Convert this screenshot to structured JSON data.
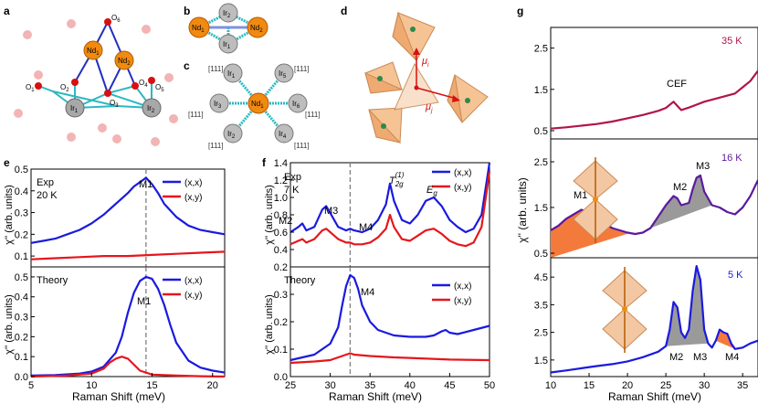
{
  "panel_labels": [
    "a",
    "b",
    "c",
    "d",
    "e",
    "f",
    "g"
  ],
  "colors": {
    "blue": "#1a1ae0",
    "red": "#e6161c",
    "crimson": "#b0154a",
    "purple": "#5b1a9e",
    "dashed": "#808080",
    "orange_fill": "#f47a3c",
    "grey_fill": "#9a9a9a",
    "nd": "#f08a10",
    "ir": "#a8a8a8",
    "oxygen": "#d81010",
    "bond": "#2cb8c0"
  },
  "structure": {
    "a_labels": {
      "o6": "O",
      "o6_sub": "6",
      "nd1": "Nd",
      "nd1_sub": "1",
      "nd2": "Nd",
      "nd2_sub": "2",
      "o1": "O",
      "o1_sub": "1",
      "o2": "O",
      "o2_sub": "2",
      "o3": "O",
      "o3_sub": "3",
      "o4": "O",
      "o4_sub": "4",
      "o5": "O",
      "o5_sub": "5",
      "ir1": "Ir",
      "ir1_sub": "1",
      "ir2": "Ir",
      "ir2_sub": "2"
    },
    "b_labels": {
      "nd1": "Nd",
      "nd1_sub": "1",
      "nd2": "Nd",
      "nd2_sub": "2",
      "ir2": "Ir",
      "ir2_sub": "2",
      "ir1": "Ir",
      "ir1_sub": "1"
    },
    "c_labels": {
      "nd1": "Nd",
      "nd1_sub": "1",
      "ir1a": "Ir",
      "ir1a_sub": "1",
      "ir5": "Ir",
      "ir5_sub": "5",
      "ir3": "Ir",
      "ir3_sub": "3",
      "ir6": "Ir",
      "ir6_sub": "6",
      "ir2": "Ir",
      "ir2_sub": "2",
      "ir4": "Ir",
      "ir4_sub": "4",
      "dir_tl": "[111]",
      "dir_tr": "[111]",
      "dir_ml": "[111]",
      "dir_mr": "[111]",
      "dir_bl": "[111]",
      "dir_br": "[111]"
    },
    "d_labels": {
      "mu_i": "μ",
      "mu_i_sub": "i",
      "mu_j": "μ",
      "mu_j_sub": "j"
    }
  },
  "chart_data": [
    {
      "id": "e_exp",
      "type": "line",
      "panel": "e",
      "title": "Exp",
      "condition": "20 K",
      "annotation": "M1",
      "xlabel": "Raman Shift (meV)",
      "ylabel": "χ'' (arb. units)",
      "xlim": [
        5,
        21
      ],
      "ylim": [
        0.05,
        0.5
      ],
      "yticks": [
        "0.1",
        "0.2",
        "0.3",
        "0.4",
        "0.5"
      ],
      "ytick_values": [
        0.1,
        0.2,
        0.3,
        0.4,
        0.5
      ],
      "dashed_x": 14.5,
      "series": [
        {
          "name": "(x,x)",
          "color": "#1a1ae0",
          "x": [
            5,
            6,
            7,
            8,
            9,
            10,
            11,
            12,
            13,
            13.5,
            14,
            14.5,
            15,
            15.5,
            16,
            17,
            18,
            19,
            20,
            21
          ],
          "y": [
            0.16,
            0.17,
            0.18,
            0.2,
            0.22,
            0.25,
            0.29,
            0.34,
            0.39,
            0.42,
            0.44,
            0.46,
            0.43,
            0.39,
            0.34,
            0.28,
            0.24,
            0.22,
            0.21,
            0.2
          ]
        },
        {
          "name": "(x,y)",
          "color": "#e6161c",
          "x": [
            5,
            7,
            9,
            11,
            13,
            15,
            17,
            19,
            21
          ],
          "y": [
            0.085,
            0.09,
            0.095,
            0.1,
            0.1,
            0.105,
            0.11,
            0.115,
            0.12
          ]
        }
      ]
    },
    {
      "id": "e_theory",
      "type": "line",
      "panel": "e",
      "title": "Theory",
      "annotation": "M1",
      "xlabel": "Raman Shift (meV)",
      "ylabel": "χ'' (arb. units)",
      "xlim": [
        5,
        21
      ],
      "ylim": [
        0,
        0.55
      ],
      "xticks": [
        "5",
        "10",
        "15",
        "20"
      ],
      "xtick_values": [
        5,
        10,
        15,
        20
      ],
      "yticks": [
        "0.0",
        "0.1",
        "0.2",
        "0.3",
        "0.4",
        "0.5"
      ],
      "ytick_values": [
        0,
        0.1,
        0.2,
        0.3,
        0.4,
        0.5
      ],
      "dashed_x": 14.5,
      "series": [
        {
          "name": "(x,x)",
          "color": "#1a1ae0",
          "x": [
            5,
            7,
            9,
            10,
            11,
            12,
            12.5,
            13,
            13.5,
            14,
            14.5,
            15,
            15.5,
            16,
            16.5,
            17,
            18,
            19,
            20,
            21
          ],
          "y": [
            0.005,
            0.008,
            0.015,
            0.025,
            0.05,
            0.12,
            0.2,
            0.32,
            0.42,
            0.48,
            0.5,
            0.49,
            0.44,
            0.36,
            0.26,
            0.17,
            0.08,
            0.045,
            0.03,
            0.02
          ]
        },
        {
          "name": "(x,y)",
          "color": "#e6161c",
          "x": [
            5,
            8,
            10,
            11,
            11.5,
            12,
            12.5,
            13,
            13.5,
            14,
            15,
            17,
            19,
            21
          ],
          "y": [
            0.0,
            0.005,
            0.015,
            0.04,
            0.07,
            0.09,
            0.1,
            0.09,
            0.06,
            0.03,
            0.01,
            0.005,
            0.002,
            0.0
          ]
        }
      ]
    },
    {
      "id": "f_exp",
      "type": "line",
      "panel": "f",
      "title": "Exp",
      "condition": "7 K",
      "annotations": [
        "M2",
        "M3",
        "M4",
        "T",
        "2g",
        "(1)",
        "E",
        "g"
      ],
      "xlabel": "Raman Shift (meV)",
      "ylabel": "χ'' (arb. units)",
      "xlim": [
        25,
        50
      ],
      "ylim": [
        0.2,
        1.4
      ],
      "yticks": [
        "0.2",
        "0.4",
        "0.6",
        "0.8",
        "1.0",
        "1.2",
        "1.4"
      ],
      "ytick_values": [
        0.2,
        0.4,
        0.6,
        0.8,
        1.0,
        1.2,
        1.4
      ],
      "dashed_x": 32.5,
      "series": [
        {
          "name": "(x,x)",
          "color": "#1a1ae0",
          "x": [
            25,
            26,
            26.5,
            27,
            28,
            29,
            29.5,
            30,
            31,
            32,
            32.5,
            33,
            34,
            35,
            36,
            37,
            37.5,
            38,
            39,
            40,
            41,
            42,
            43,
            44,
            45,
            46,
            47,
            48,
            49,
            50
          ],
          "y": [
            0.6,
            0.66,
            0.7,
            0.62,
            0.66,
            0.86,
            0.9,
            0.82,
            0.66,
            0.62,
            0.64,
            0.62,
            0.6,
            0.64,
            0.74,
            0.92,
            1.16,
            0.96,
            0.74,
            0.7,
            0.8,
            0.96,
            1.0,
            0.9,
            0.74,
            0.66,
            0.6,
            0.64,
            0.8,
            1.4
          ]
        },
        {
          "name": "(x,y)",
          "color": "#e6161c",
          "x": [
            25,
            26,
            26.5,
            27,
            28,
            29,
            29.5,
            30,
            31,
            32,
            32.5,
            33,
            34,
            35,
            36,
            37,
            37.5,
            38,
            39,
            40,
            41,
            42,
            43,
            44,
            45,
            46,
            47,
            48,
            49,
            50
          ],
          "y": [
            0.46,
            0.5,
            0.52,
            0.48,
            0.52,
            0.62,
            0.64,
            0.6,
            0.52,
            0.48,
            0.48,
            0.46,
            0.46,
            0.48,
            0.54,
            0.64,
            0.8,
            0.66,
            0.52,
            0.5,
            0.56,
            0.62,
            0.64,
            0.58,
            0.5,
            0.46,
            0.44,
            0.48,
            0.66,
            1.3
          ]
        }
      ]
    },
    {
      "id": "f_theory",
      "type": "line",
      "panel": "f",
      "title": "Theory",
      "annotation": "M4",
      "xlabel": "Raman Shift (meV)",
      "ylabel": "χ'' (arb. units)",
      "xlim": [
        25,
        50
      ],
      "ylim": [
        0,
        0.4
      ],
      "xticks": [
        "25",
        "30",
        "35",
        "40",
        "45",
        "50"
      ],
      "xtick_values": [
        25,
        30,
        35,
        40,
        45,
        50
      ],
      "yticks": [
        "0.0",
        "0.1",
        "0.2",
        "0.3"
      ],
      "ytick_values": [
        0,
        0.1,
        0.2,
        0.3
      ],
      "dashed_x": 32.5,
      "series": [
        {
          "name": "(x,x)",
          "color": "#1a1ae0",
          "x": [
            25,
            28,
            30,
            31,
            31.5,
            32,
            32.5,
            33,
            33.5,
            34,
            35,
            36,
            38,
            40,
            42,
            43,
            44,
            44.5,
            45,
            46,
            48,
            50
          ],
          "y": [
            0.06,
            0.08,
            0.12,
            0.18,
            0.26,
            0.33,
            0.37,
            0.36,
            0.32,
            0.26,
            0.2,
            0.17,
            0.15,
            0.145,
            0.145,
            0.15,
            0.165,
            0.17,
            0.16,
            0.155,
            0.17,
            0.185
          ]
        },
        {
          "name": "(x,y)",
          "color": "#e6161c",
          "x": [
            25,
            28,
            30,
            31,
            32,
            32.5,
            33,
            35,
            38,
            40,
            45,
            50
          ],
          "y": [
            0.05,
            0.055,
            0.06,
            0.07,
            0.08,
            0.085,
            0.08,
            0.075,
            0.07,
            0.068,
            0.062,
            0.06
          ]
        }
      ]
    },
    {
      "id": "g_35K",
      "type": "line",
      "panel": "g",
      "label": "35 K",
      "annotation": "CEF",
      "xlim": [
        10,
        37
      ],
      "ylim": [
        0.3,
        3.0
      ],
      "yticks": [
        "0.5",
        "1.5",
        "2.5"
      ],
      "ytick_values": [
        0.5,
        1.5,
        2.5
      ],
      "series": [
        {
          "name": "35 K",
          "color": "#b0154a",
          "x": [
            10,
            12,
            14,
            16,
            18,
            20,
            22,
            24,
            25,
            26,
            26.5,
            27,
            28,
            30,
            32,
            34,
            35,
            36,
            37
          ],
          "y": [
            0.55,
            0.58,
            0.62,
            0.66,
            0.72,
            0.8,
            0.88,
            0.98,
            1.05,
            1.2,
            1.1,
            1.0,
            1.06,
            1.2,
            1.3,
            1.4,
            1.55,
            1.7,
            1.95
          ]
        }
      ]
    },
    {
      "id": "g_16K",
      "type": "line",
      "panel": "g",
      "label": "16 K",
      "annotations": [
        "M1",
        "M2",
        "M3"
      ],
      "ylabel": "χ'' (arb. units)",
      "xlim": [
        10,
        37
      ],
      "ylim": [
        0.4,
        3.0
      ],
      "yticks": [
        "0.5",
        "1.5",
        "2.5"
      ],
      "ytick_values": [
        0.5,
        1.5,
        2.5
      ],
      "series": [
        {
          "name": "16 K",
          "color": "#5b1a9e",
          "x": [
            10,
            11,
            12,
            13,
            14,
            15,
            16,
            17,
            18,
            19,
            20,
            21,
            22,
            23,
            24,
            25,
            26,
            26.5,
            27,
            28,
            28.5,
            29,
            29.5,
            30,
            31,
            32,
            33,
            34,
            35,
            36,
            37
          ],
          "y": [
            1.0,
            1.1,
            1.25,
            1.35,
            1.45,
            1.4,
            1.3,
            1.15,
            1.05,
            1.0,
            0.95,
            0.92,
            0.95,
            1.05,
            1.3,
            1.55,
            1.75,
            1.7,
            1.55,
            1.6,
            1.9,
            2.15,
            2.2,
            1.85,
            1.55,
            1.5,
            1.4,
            1.35,
            1.5,
            1.75,
            2.1
          ]
        }
      ]
    },
    {
      "id": "g_5K",
      "type": "line",
      "panel": "g",
      "label": "5 K",
      "annotations": [
        "M2",
        "M3",
        "M4"
      ],
      "xlabel": "Raman Shift (meV)",
      "xlim": [
        10,
        37
      ],
      "ylim": [
        0.9,
        5.2
      ],
      "xticks": [
        "10",
        "15",
        "20",
        "25",
        "30",
        "35"
      ],
      "xtick_values": [
        10,
        15,
        20,
        25,
        30,
        35
      ],
      "yticks": [
        "1.5",
        "2.5",
        "3.5",
        "4.5"
      ],
      "ytick_values": [
        1.5,
        2.5,
        3.5,
        4.5
      ],
      "series": [
        {
          "name": "5 K",
          "color": "#1a1ae0",
          "x": [
            10,
            12,
            14,
            16,
            18,
            20,
            22,
            24,
            25,
            25.5,
            26,
            26.5,
            27,
            27.5,
            28,
            28.5,
            29,
            29.5,
            30,
            30.5,
            31,
            31.5,
            32,
            32.5,
            33,
            33.5,
            34,
            35,
            36,
            37
          ],
          "y": [
            1.05,
            1.12,
            1.2,
            1.28,
            1.35,
            1.45,
            1.6,
            1.8,
            2.0,
            2.6,
            3.6,
            3.4,
            2.5,
            2.3,
            2.6,
            4.0,
            4.9,
            4.4,
            2.6,
            2.1,
            1.95,
            2.2,
            2.6,
            2.5,
            2.45,
            2.1,
            1.9,
            1.95,
            2.1,
            2.2
          ]
        }
      ]
    }
  ]
}
